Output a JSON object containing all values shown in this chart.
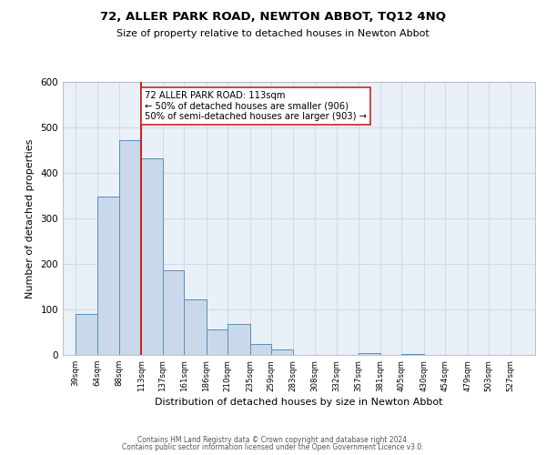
{
  "title": "72, ALLER PARK ROAD, NEWTON ABBOT, TQ12 4NQ",
  "subtitle": "Size of property relative to detached houses in Newton Abbot",
  "xlabel": "Distribution of detached houses by size in Newton Abbot",
  "ylabel": "Number of detached properties",
  "bar_left_edges": [
    39,
    64,
    88,
    113,
    137,
    161,
    186,
    210,
    235,
    259,
    283,
    308,
    332,
    357,
    381,
    405,
    430,
    454,
    479,
    503
  ],
  "bar_widths": [
    25,
    24,
    25,
    24,
    24,
    25,
    24,
    25,
    24,
    24,
    25,
    24,
    25,
    24,
    24,
    25,
    24,
    25,
    24,
    24
  ],
  "bar_heights": [
    90,
    348,
    472,
    432,
    187,
    123,
    57,
    68,
    25,
    13,
    0,
    0,
    0,
    5,
    0,
    2,
    0,
    1,
    0,
    1
  ],
  "bar_color": "#c9d9eb",
  "bar_edge_color": "#5b8db8",
  "grid_color": "#d0dce8",
  "bg_color": "#eaf0f8",
  "vline_x": 113,
  "vline_color": "#cc2222",
  "annotation_text": "72 ALLER PARK ROAD: 113sqm\n← 50% of detached houses are smaller (906)\n50% of semi-detached houses are larger (903) →",
  "annotation_box_color": "#ffffff",
  "annotation_box_edge": "#cc2222",
  "tick_labels": [
    "39sqm",
    "64sqm",
    "88sqm",
    "113sqm",
    "137sqm",
    "161sqm",
    "186sqm",
    "210sqm",
    "235sqm",
    "259sqm",
    "283sqm",
    "308sqm",
    "332sqm",
    "357sqm",
    "381sqm",
    "405sqm",
    "430sqm",
    "454sqm",
    "479sqm",
    "503sqm",
    "527sqm"
  ],
  "tick_positions": [
    39,
    64,
    88,
    113,
    137,
    161,
    186,
    210,
    235,
    259,
    283,
    308,
    332,
    357,
    381,
    405,
    430,
    454,
    479,
    503,
    527
  ],
  "ylim": [
    0,
    600
  ],
  "xlim": [
    25,
    555
  ],
  "footer1": "Contains HM Land Registry data © Crown copyright and database right 2024.",
  "footer2": "Contains public sector information licensed under the Open Government Licence v3.0."
}
